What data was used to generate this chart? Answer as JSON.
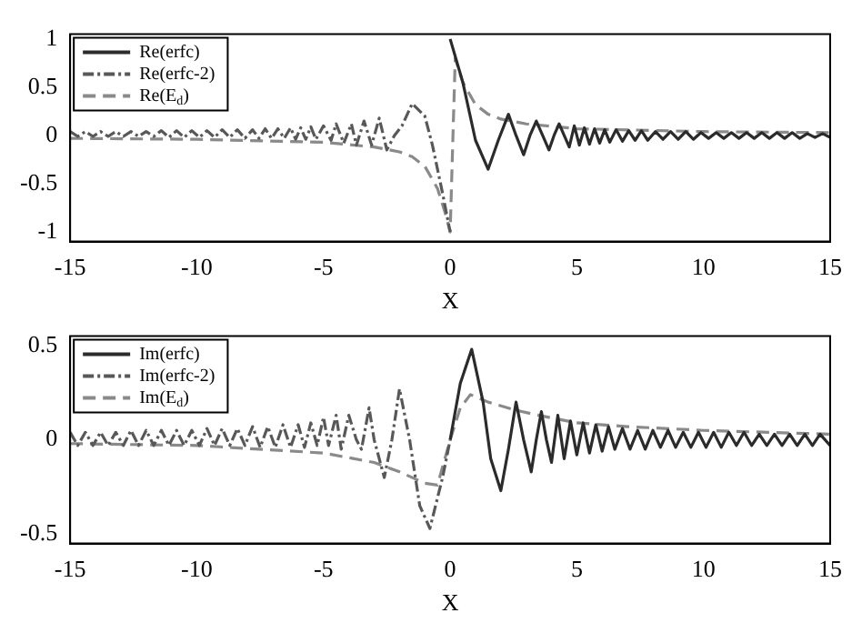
{
  "chart_data": [
    {
      "type": "line",
      "xlabel": "X",
      "xlim": [
        -15,
        15
      ],
      "xticks": [
        -15,
        -10,
        -5,
        0,
        5,
        10,
        15
      ],
      "ylim": [
        -1.1,
        1.05
      ],
      "yticks": [
        -1,
        -0.5,
        0,
        0.5,
        1
      ],
      "grid": false,
      "legend": "top left",
      "series": [
        {
          "name": "Re(erfc)",
          "color": "#2b2b2b",
          "line_style": "solid",
          "x": [
            0,
            0.5,
            1,
            1.5,
            1.9,
            2.3,
            2.6,
            2.9,
            3.15,
            3.4,
            3.65,
            3.9,
            4.1,
            4.3,
            4.5,
            4.7,
            4.9,
            5.1,
            5.3,
            5.5,
            5.7,
            5.9,
            6.1,
            6.3,
            6.55,
            6.8,
            7.05,
            7.3,
            7.55,
            7.8,
            8.1,
            8.4,
            8.7,
            9,
            9.3,
            9.6,
            9.9,
            10.2,
            10.5,
            10.8,
            11.1,
            11.4,
            11.7,
            12,
            12.3,
            12.6,
            12.9,
            13.2,
            13.5,
            13.8,
            14.1,
            14.4,
            14.7,
            15
          ],
          "values": [
            1,
            0.55,
            -0.05,
            -0.35,
            -0.05,
            0.22,
            0,
            -0.2,
            0,
            0.15,
            0,
            -0.15,
            0,
            0.12,
            0,
            -0.12,
            0.1,
            -0.1,
            0.08,
            -0.09,
            0.07,
            -0.08,
            0.06,
            -0.07,
            0.06,
            -0.06,
            0.05,
            -0.05,
            0.05,
            -0.05,
            0.04,
            -0.04,
            0.04,
            -0.04,
            0.04,
            -0.04,
            0.03,
            -0.03,
            0.03,
            -0.03,
            0.03,
            -0.03,
            0.03,
            -0.03,
            0.03,
            -0.03,
            0.03,
            -0.03,
            0.03,
            -0.03,
            0.02,
            -0.02,
            0.02,
            -0.02
          ]
        },
        {
          "name": "Re(erfc-2)",
          "color": "#585858",
          "line_style": "dotted",
          "x": [
            -15,
            -14.7,
            -14.4,
            -14.1,
            -13.8,
            -13.5,
            -13.2,
            -12.9,
            -12.6,
            -12.3,
            -12,
            -11.7,
            -11.4,
            -11.1,
            -10.8,
            -10.5,
            -10.2,
            -9.9,
            -9.6,
            -9.3,
            -9,
            -8.7,
            -8.4,
            -8.1,
            -7.8,
            -7.55,
            -7.3,
            -7.05,
            -6.8,
            -6.55,
            -6.3,
            -6.1,
            -5.9,
            -5.7,
            -5.5,
            -5.3,
            -5,
            -4.7,
            -4.5,
            -4.2,
            -3.9,
            -3.7,
            -3.4,
            -3.1,
            -2.8,
            -2.5,
            -2.2,
            -1.9,
            -1.5,
            -1,
            -0.7,
            -0.3,
            0
          ],
          "values": [
            0.04,
            -0.01,
            0.04,
            -0.01,
            0.04,
            -0.01,
            0.04,
            -0.01,
            0.04,
            -0.01,
            0.04,
            -0.01,
            0.05,
            -0.02,
            0.05,
            -0.02,
            0.05,
            -0.02,
            0.05,
            -0.02,
            0.06,
            -0.02,
            0.06,
            -0.03,
            0.06,
            -0.03,
            0.07,
            -0.03,
            0.07,
            -0.03,
            0.08,
            -0.04,
            0.08,
            -0.04,
            0.09,
            -0.04,
            0.1,
            -0.05,
            0.12,
            -0.08,
            0.12,
            -0.1,
            0.15,
            -0.1,
            0.18,
            -0.15,
            0,
            0.1,
            0.33,
            0.2,
            -0.1,
            -0.6,
            -1
          ]
        },
        {
          "name": "Re(E$_{d}$)",
          "color": "#8a8a8a",
          "line_style": "dashed",
          "x": [
            -15,
            -10,
            -5,
            -3,
            -2,
            -1.5,
            -1,
            -0.5,
            -0.2,
            0,
            0.2,
            0.5,
            1,
            1.5,
            2,
            3,
            5,
            10,
            15
          ],
          "values": [
            -0.03,
            -0.04,
            -0.07,
            -0.12,
            -0.17,
            -0.22,
            -0.32,
            -0.55,
            -0.8,
            -1,
            0.8,
            0.55,
            0.32,
            0.22,
            0.17,
            0.12,
            0.07,
            0.04,
            0.03
          ]
        }
      ]
    },
    {
      "type": "line",
      "xlabel": "X",
      "xlim": [
        -15,
        15
      ],
      "xticks": [
        -15,
        -10,
        -5,
        0,
        5,
        10,
        15
      ],
      "ylim": [
        -0.55,
        0.55
      ],
      "yticks": [
        -0.5,
        0,
        0.5
      ],
      "grid": false,
      "legend": "top left",
      "series": [
        {
          "name": "Im(erfc)",
          "color": "#2b2b2b",
          "line_style": "solid",
          "x": [
            0,
            0.4,
            0.85,
            1.3,
            1.6,
            2,
            2.3,
            2.6,
            2.9,
            3.2,
            3.4,
            3.6,
            3.8,
            4,
            4.25,
            4.5,
            4.75,
            5,
            5.25,
            5.5,
            5.75,
            6,
            6.25,
            6.5,
            6.8,
            7.1,
            7.4,
            7.7,
            8,
            8.3,
            8.6,
            8.9,
            9.2,
            9.5,
            9.8,
            10.1,
            10.4,
            10.7,
            11,
            11.3,
            11.6,
            11.9,
            12.2,
            12.5,
            12.8,
            13.1,
            13.4,
            13.7,
            14,
            14.3,
            14.6,
            15
          ],
          "values": [
            0,
            0.3,
            0.48,
            0.2,
            -0.1,
            -0.27,
            -0.05,
            0.2,
            0,
            -0.17,
            0,
            0.15,
            0,
            -0.12,
            0.13,
            -0.1,
            0.1,
            -0.08,
            0.09,
            -0.07,
            0.08,
            -0.06,
            0.07,
            -0.05,
            0.06,
            -0.05,
            0.05,
            -0.05,
            0.05,
            -0.04,
            0.05,
            -0.04,
            0.04,
            -0.04,
            0.04,
            -0.04,
            0.04,
            -0.04,
            0.04,
            -0.03,
            0.04,
            -0.03,
            0.03,
            -0.03,
            0.03,
            -0.03,
            0.03,
            -0.03,
            0.03,
            -0.03,
            0.03,
            -0.03
          ]
        },
        {
          "name": "Im(erfc-2)",
          "color": "#585858",
          "line_style": "dotted",
          "x": [
            -15,
            -14.7,
            -14.4,
            -14.1,
            -13.8,
            -13.5,
            -13.2,
            -12.9,
            -12.6,
            -12.3,
            -12,
            -11.7,
            -11.4,
            -11.1,
            -10.8,
            -10.5,
            -10.2,
            -9.9,
            -9.6,
            -9.3,
            -9,
            -8.7,
            -8.4,
            -8.1,
            -7.8,
            -7.5,
            -7.2,
            -6.9,
            -6.6,
            -6.3,
            -6,
            -5.75,
            -5.5,
            -5.25,
            -5,
            -4.8,
            -4.5,
            -4.3,
            -4,
            -3.7,
            -3.5,
            -3.2,
            -3,
            -2.6,
            -2.3,
            -2,
            -1.6,
            -1.2,
            -0.8,
            -0.3,
            0
          ],
          "values": [
            0.04,
            -0.03,
            0.04,
            -0.03,
            0.04,
            -0.03,
            0.04,
            -0.03,
            0.05,
            -0.03,
            0.05,
            -0.03,
            0.05,
            -0.03,
            0.05,
            -0.03,
            0.05,
            -0.03,
            0.06,
            -0.03,
            0.06,
            -0.03,
            0.06,
            -0.03,
            0.07,
            -0.04,
            0.07,
            -0.04,
            0.08,
            -0.04,
            0.08,
            -0.04,
            0.09,
            -0.03,
            0.12,
            -0.03,
            0.13,
            -0.05,
            0.13,
            0,
            -0.05,
            0.17,
            0,
            -0.2,
            0,
            0.27,
            0,
            -0.35,
            -0.47,
            -0.2,
            0
          ]
        },
        {
          "name": "Im(E$_{d}$)",
          "color": "#8a8a8a",
          "line_style": "dashed",
          "x": [
            -15,
            -10,
            -5,
            -3,
            -2,
            -1,
            -0.5,
            0,
            0.4,
            0.8,
            1.5,
            2.5,
            3.5,
            5,
            7,
            10,
            15
          ],
          "values": [
            -0.02,
            -0.03,
            -0.07,
            -0.12,
            -0.17,
            -0.23,
            -0.24,
            0,
            0.17,
            0.24,
            0.2,
            0.16,
            0.13,
            0.09,
            0.07,
            0.05,
            0.03
          ]
        }
      ]
    }
  ]
}
